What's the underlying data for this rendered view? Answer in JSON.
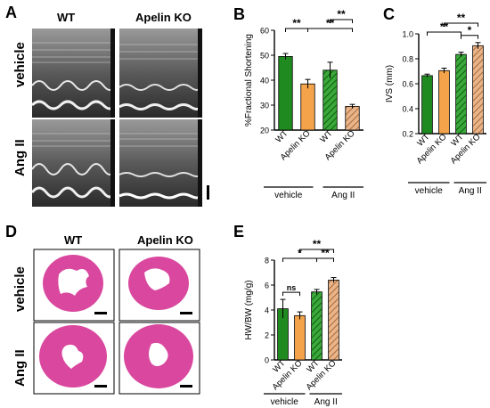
{
  "panels": {
    "A": {
      "letter": "A",
      "col_headers": [
        "WT",
        "Apelin KO"
      ],
      "row_labels": [
        "vehicle",
        "Ang II"
      ]
    },
    "D": {
      "letter": "D",
      "col_headers": [
        "WT",
        "Apelin KO"
      ],
      "row_labels": [
        "vehicle",
        "Ang II"
      ]
    }
  },
  "group_labels": {
    "vehicle": "vehicle",
    "angii": "Ang II"
  },
  "colors": {
    "wt_vehicle": "#1f8a1f",
    "ko_vehicle": "#f4a34a",
    "wt_angii": "#3aa83a",
    "ko_angii": "#e9b489",
    "tissue": "#d9489e"
  },
  "chart_data": [
    {
      "id": "B",
      "letter": "B",
      "type": "bar",
      "ylabel": "%Fractional Shortening",
      "ylim": [
        20,
        60
      ],
      "yticks": [
        20,
        30,
        40,
        50,
        60
      ],
      "categories": [
        "WT",
        "Apelin KO",
        "WT",
        "Apelin KO"
      ],
      "values": [
        49.5,
        38.5,
        44,
        29.5
      ],
      "errors": [
        1.2,
        1.8,
        3.2,
        0.8
      ],
      "brackets": [
        {
          "from": 0,
          "to": 1,
          "level": 1,
          "label": "**"
        },
        {
          "from": 1,
          "to": 3,
          "level": 1,
          "label": "**"
        },
        {
          "from": 2,
          "to": 3,
          "level": 2,
          "label": "**"
        }
      ]
    },
    {
      "id": "C",
      "letter": "C",
      "type": "bar",
      "ylabel": "IVS (mm)",
      "ylim": [
        0.2,
        1.0
      ],
      "yticks": [
        0.2,
        0.4,
        0.6,
        0.8,
        1.0
      ],
      "categories": [
        "WT",
        "Apelin KO",
        "WT",
        "Apelin KO"
      ],
      "values": [
        0.665,
        0.705,
        0.835,
        0.905
      ],
      "errors": [
        0.012,
        0.02,
        0.018,
        0.025
      ],
      "brackets": [
        {
          "from": 0,
          "to": 2,
          "level": 1,
          "label": "**"
        },
        {
          "from": 1,
          "to": 3,
          "level": 2,
          "label": "**"
        },
        {
          "from": 2,
          "to": 3,
          "level": 0,
          "label": "*"
        }
      ]
    },
    {
      "id": "E",
      "letter": "E",
      "type": "bar",
      "ylabel": "HW/BW (mg/g)",
      "ylim": [
        0,
        8
      ],
      "yticks": [
        0,
        2,
        4,
        6,
        8
      ],
      "categories": [
        "WT",
        "Apelin KO",
        "WT",
        "Apelin KO"
      ],
      "values": [
        4.1,
        3.55,
        5.45,
        6.4
      ],
      "errors": [
        0.75,
        0.3,
        0.2,
        0.2
      ],
      "brackets": [
        {
          "from": 0,
          "to": 1,
          "level": 0,
          "label": "ns"
        },
        {
          "from": 0,
          "to": 2,
          "level": 1,
          "label": "*"
        },
        {
          "from": 2,
          "to": 3,
          "level": 1,
          "label": "**"
        },
        {
          "from": 1,
          "to": 3,
          "level": 2,
          "label": "**"
        }
      ]
    }
  ]
}
